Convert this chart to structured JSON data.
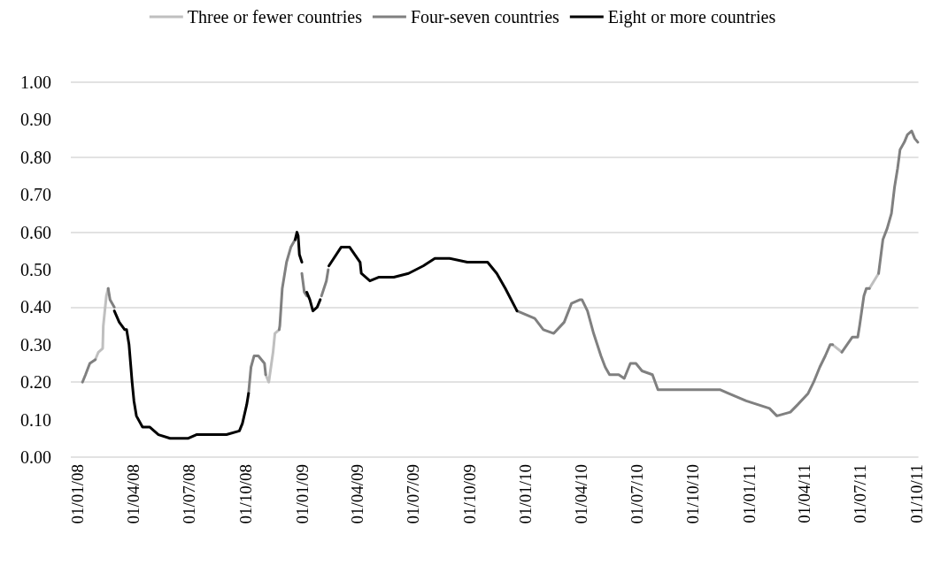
{
  "chart_data": {
    "type": "line",
    "legend": "top",
    "grid": "y",
    "marker": "none",
    "xlim": [
      "2007-12-21",
      "2011-10-04"
    ],
    "xticks": [
      {
        "value": "2008-01-01",
        "label": "01/01/08"
      },
      {
        "value": "2008-04-01",
        "label": "01/04/08"
      },
      {
        "value": "2008-07-01",
        "label": "01/07/08"
      },
      {
        "value": "2008-10-01",
        "label": "01/10/08"
      },
      {
        "value": "2009-01-01",
        "label": "01/01/09"
      },
      {
        "value": "2009-04-01",
        "label": "01/04/09"
      },
      {
        "value": "2009-07-01",
        "label": "01/07/09"
      },
      {
        "value": "2009-10-01",
        "label": "01/10/09"
      },
      {
        "value": "2010-01-01",
        "label": "01/01/10"
      },
      {
        "value": "2010-04-01",
        "label": "01/04/10"
      },
      {
        "value": "2010-07-01",
        "label": "01/07/10"
      },
      {
        "value": "2010-10-01",
        "label": "01/10/10"
      },
      {
        "value": "2011-01-01",
        "label": "01/01/11"
      },
      {
        "value": "2011-04-01",
        "label": "01/04/11"
      },
      {
        "value": "2011-07-01",
        "label": "01/07/11"
      },
      {
        "value": "2011-10-01",
        "label": "01/10/11"
      }
    ],
    "ylim": [
      0,
      1
    ],
    "yticks": [
      {
        "value": 0,
        "label": "0.00"
      },
      {
        "value": 0.1,
        "label": "0.10"
      },
      {
        "value": 0.2,
        "label": "0.20"
      },
      {
        "value": 0.3,
        "label": "0.30"
      },
      {
        "value": 0.4,
        "label": "0.40"
      },
      {
        "value": 0.5,
        "label": "0.50"
      },
      {
        "value": 0.6,
        "label": "0.60"
      },
      {
        "value": 0.7,
        "label": "0.70"
      },
      {
        "value": 0.8,
        "label": "0.80"
      },
      {
        "value": 0.9,
        "label": "0.90"
      },
      {
        "value": 1,
        "label": "1.00"
      }
    ],
    "series": [
      {
        "name": "Three or fewer countries",
        "color": "#bfbfbf",
        "x": [
          "2008-01-30",
          "2008-02-04",
          "2008-02-11",
          "2008-02-12",
          "2008-02-17",
          "2008-02-20",
          "2008-06-01",
          "2008-11-03",
          "2008-11-08",
          "2008-11-15",
          "2008-11-18",
          "2008-11-25",
          "2010-01-01",
          "2011-05-17",
          "2011-06-01",
          "2011-07-01",
          "2011-07-16",
          "2011-07-31"
        ],
        "values": [
          0.26,
          0.28,
          0.29,
          0.35,
          0.43,
          0.45,
          null,
          0.22,
          0.2,
          0.28,
          0.33,
          0.34,
          null,
          0.3,
          0.28,
          null,
          0.45,
          0.49
        ]
      },
      {
        "name": "Four-seven countries",
        "color": "#808080",
        "x": [
          "2008-01-09",
          "2008-01-14",
          "2008-01-21",
          "2008-01-30",
          "2008-02-10",
          "2008-02-20",
          "2008-02-23",
          "2008-03-01",
          "2008-06-01",
          "2008-10-06",
          "2008-10-10",
          "2008-10-15",
          "2008-10-22",
          "2008-11-01",
          "2008-11-03",
          "2008-11-14",
          "2008-11-25",
          "2008-11-26",
          "2008-11-30",
          "2008-12-07",
          "2008-12-14",
          "2008-12-21",
          "2008-12-27",
          "2009-01-01",
          "2009-01-05",
          "2009-01-09",
          "2009-01-20",
          "2009-02-02",
          "2009-02-10",
          "2009-02-13",
          "2009-07-01",
          "2009-12-18",
          "2010-01-16",
          "2010-01-30",
          "2010-02-16",
          "2010-03-05",
          "2010-03-17",
          "2010-03-31",
          "2010-04-03",
          "2010-04-12",
          "2010-04-22",
          "2010-05-04",
          "2010-05-11",
          "2010-05-18",
          "2010-06-02",
          "2010-06-11",
          "2010-06-21",
          "2010-06-30",
          "2010-07-10",
          "2010-07-27",
          "2010-08-05",
          "2010-09-13",
          "2010-09-17",
          "2010-11-14",
          "2010-11-28",
          "2010-12-27",
          "2011-02-03",
          "2011-02-15",
          "2011-03-09",
          "2011-03-21",
          "2011-04-07",
          "2011-04-16",
          "2011-04-26",
          "2011-05-05",
          "2011-05-13",
          "2011-05-17",
          "2011-05-24",
          "2011-06-01",
          "2011-06-18",
          "2011-06-27",
          "2011-06-30",
          "2011-07-07",
          "2011-07-11",
          "2011-07-16",
          "2011-07-23",
          "2011-07-31",
          "2011-08-07",
          "2011-08-14",
          "2011-08-21",
          "2011-08-26",
          "2011-08-31",
          "2011-09-04",
          "2011-09-11",
          "2011-09-16",
          "2011-09-23",
          "2011-09-28",
          "2011-10-03"
        ],
        "values": [
          0.2,
          0.22,
          0.25,
          0.26,
          null,
          0.45,
          0.42,
          0.4,
          null,
          0.17,
          0.24,
          0.27,
          0.27,
          0.25,
          0.22,
          null,
          0.34,
          0.35,
          0.45,
          0.52,
          0.56,
          0.58,
          null,
          0.49,
          0.44,
          0.43,
          null,
          0.43,
          0.47,
          0.5,
          null,
          0.39,
          0.37,
          0.34,
          0.33,
          0.36,
          0.41,
          0.42,
          0.42,
          0.39,
          0.33,
          0.27,
          0.24,
          0.22,
          0.22,
          0.21,
          0.25,
          0.25,
          0.23,
          0.22,
          0.18,
          0.18,
          0.18,
          0.18,
          0.17,
          0.15,
          0.13,
          0.11,
          0.12,
          0.14,
          0.17,
          0.2,
          0.24,
          0.27,
          0.3,
          0.3,
          null,
          0.28,
          0.32,
          0.32,
          0.35,
          0.43,
          0.45,
          0.45,
          null,
          0.49,
          0.58,
          0.61,
          0.65,
          0.72,
          0.77,
          0.82,
          0.84,
          0.86,
          0.87,
          0.85,
          0.84
        ]
      },
      {
        "name": "Eight or more countries",
        "color": "#000000",
        "x": [
          "2008-03-01",
          "2008-03-09",
          "2008-03-18",
          "2008-03-21",
          "2008-03-25",
          "2008-03-28",
          "2008-03-30",
          "2008-04-02",
          "2008-04-06",
          "2008-04-16",
          "2008-04-28",
          "2008-05-12",
          "2008-05-31",
          "2008-06-29",
          "2008-07-13",
          "2008-07-28",
          "2008-08-31",
          "2008-09-21",
          "2008-09-26",
          "2008-10-03",
          "2008-10-06",
          "2008-11-15",
          "2008-12-21",
          "2008-12-24",
          "2008-12-26",
          "2008-12-28",
          "2009-01-01",
          "2009-01-05",
          "2009-01-09",
          "2009-01-14",
          "2009-01-19",
          "2009-01-26",
          "2009-01-31",
          "2009-02-07",
          "2009-02-14",
          "2009-03-06",
          "2009-03-20",
          "2009-04-06",
          "2009-04-08",
          "2009-04-22",
          "2009-05-07",
          "2009-05-31",
          "2009-06-24",
          "2009-07-18",
          "2009-08-06",
          "2009-08-30",
          "2009-09-28",
          "2009-10-31",
          "2009-11-15",
          "2009-11-29",
          "2009-12-18"
        ],
        "values": [
          0.39,
          0.36,
          0.34,
          0.34,
          0.3,
          0.24,
          0.2,
          0.15,
          0.11,
          0.08,
          0.08,
          0.06,
          0.05,
          0.05,
          0.06,
          0.06,
          0.06,
          0.07,
          0.09,
          0.14,
          0.17,
          null,
          0.58,
          0.6,
          0.59,
          0.54,
          0.52,
          null,
          0.44,
          0.42,
          0.39,
          0.4,
          0.42,
          null,
          0.51,
          0.56,
          0.56,
          0.52,
          0.49,
          0.47,
          0.48,
          0.48,
          0.49,
          0.51,
          0.53,
          0.53,
          0.52,
          0.52,
          0.49,
          0.45,
          0.39
        ]
      }
    ]
  }
}
